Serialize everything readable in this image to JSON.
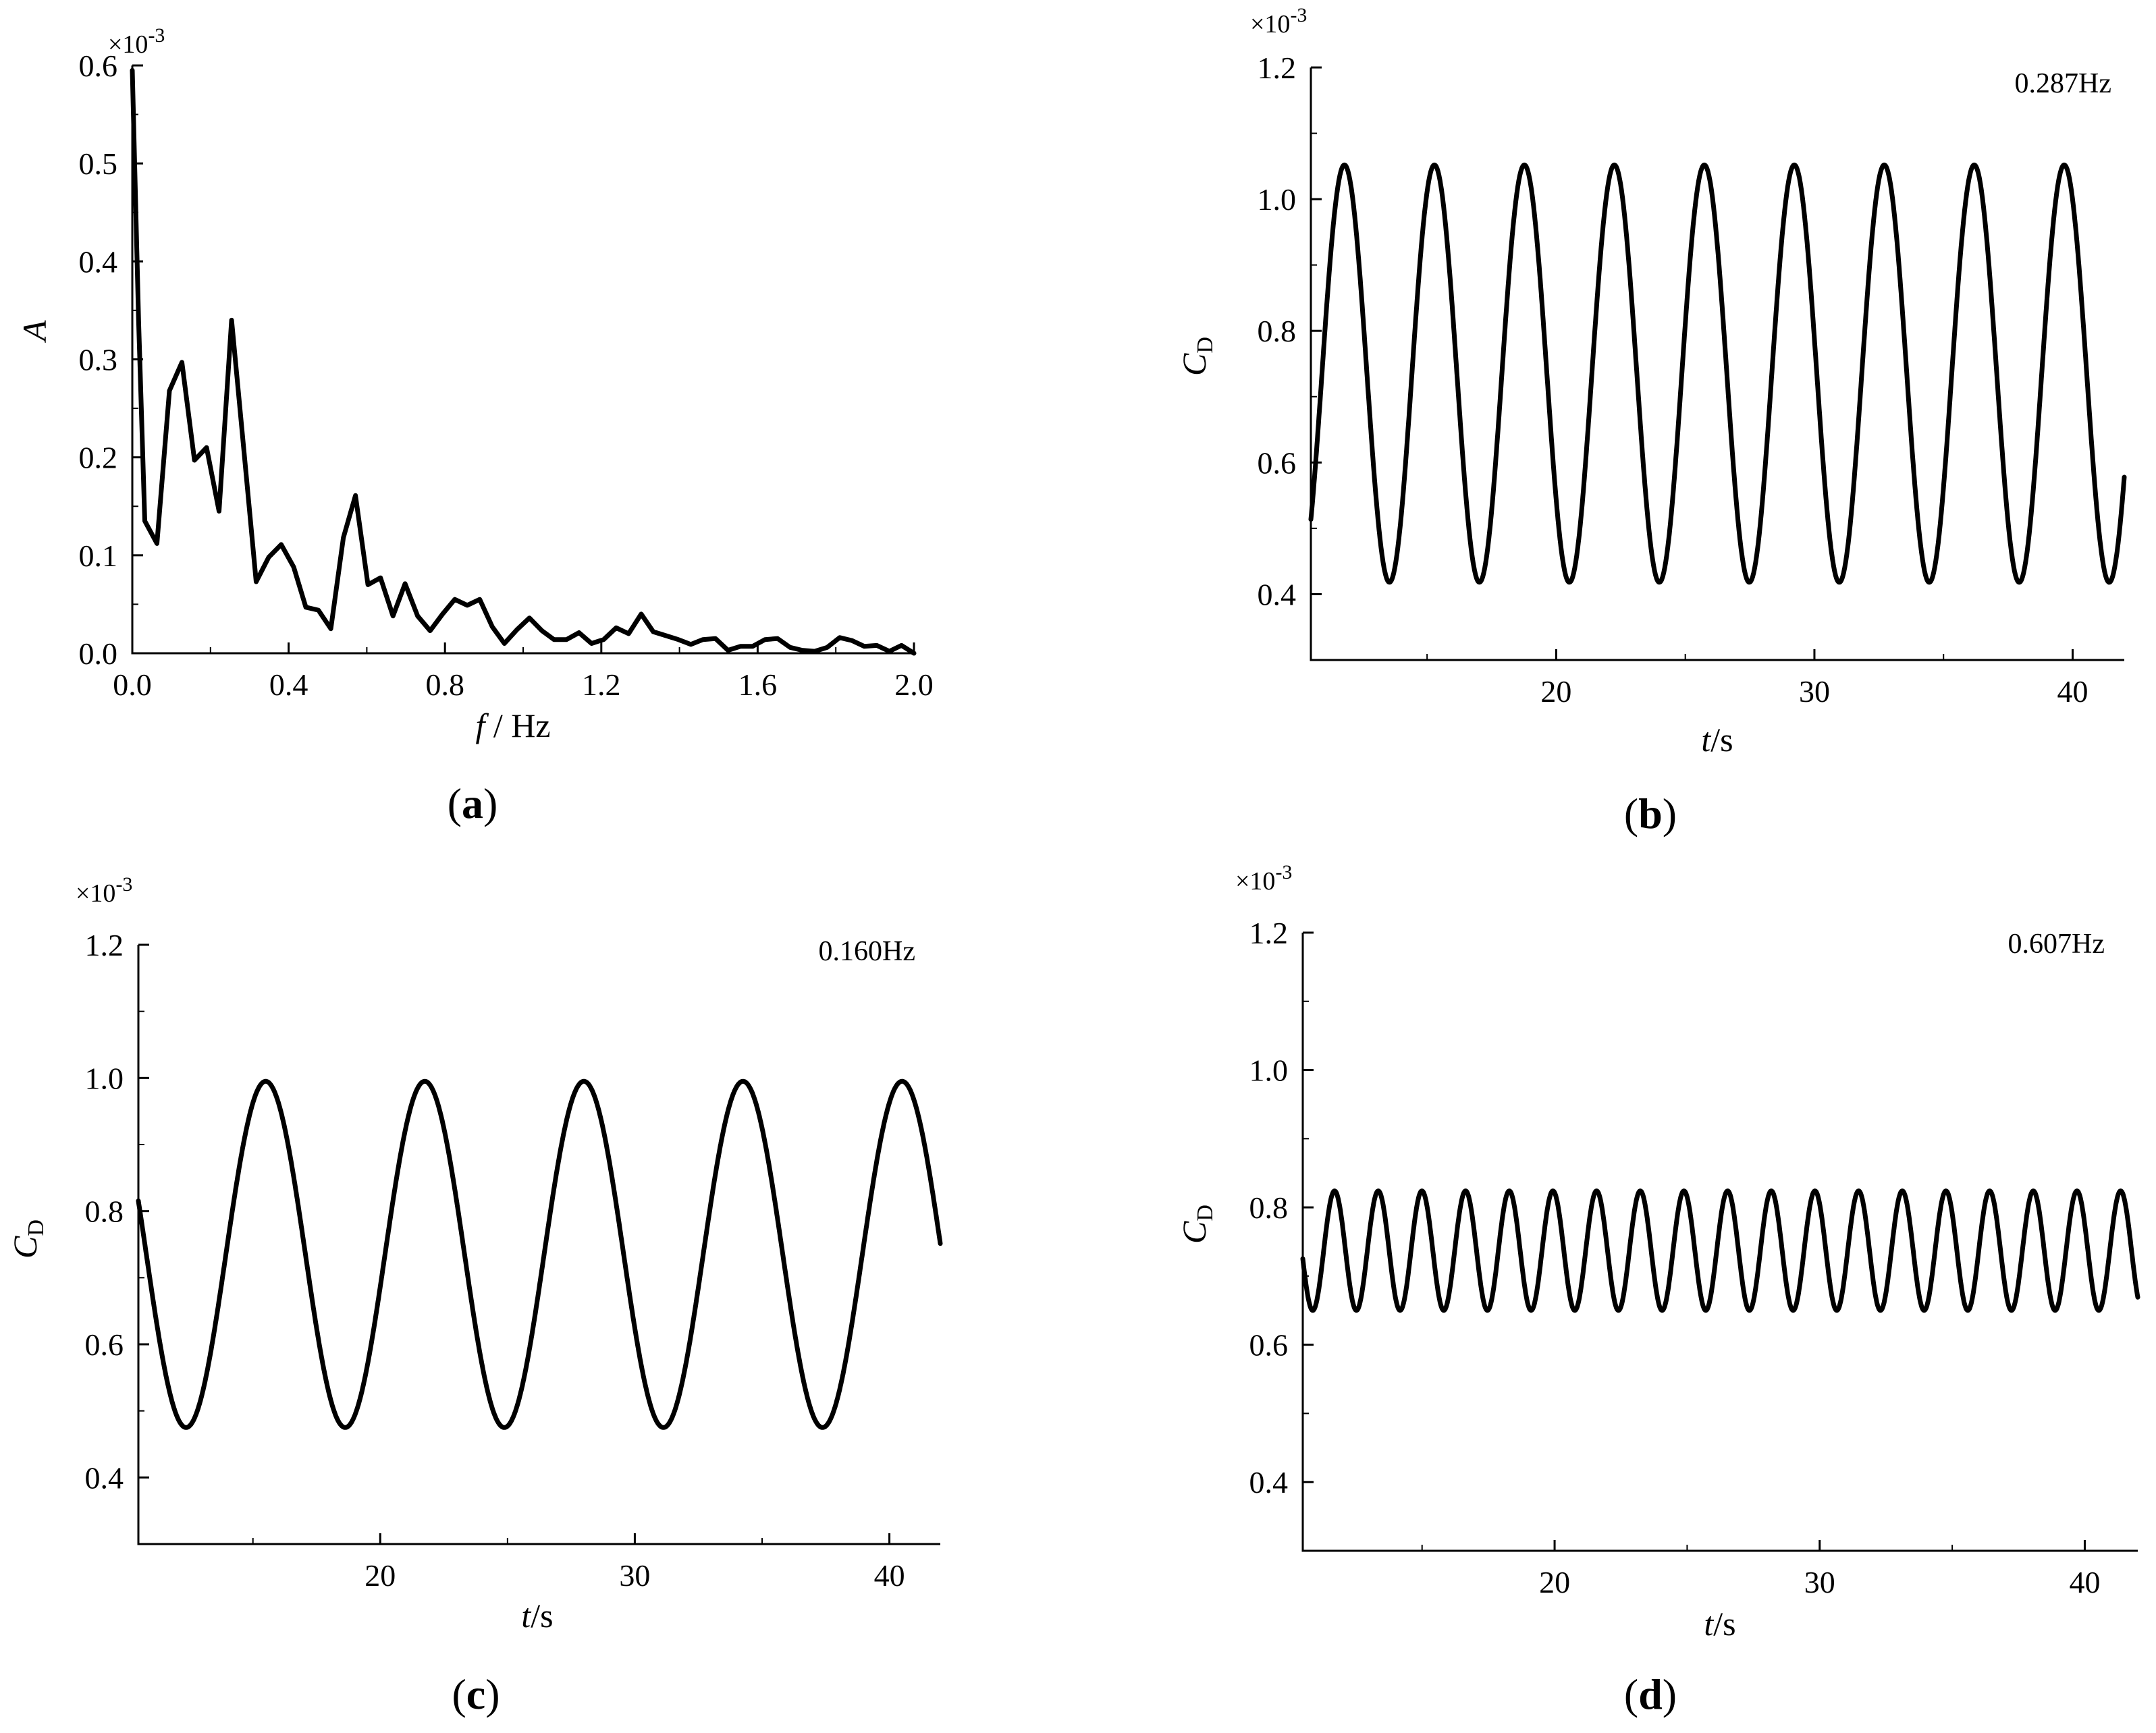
{
  "chart_data": [
    {
      "id": "a",
      "type": "line",
      "panel_label": {
        "open": "(",
        "letter": "a",
        "close": ")"
      },
      "annotation": "",
      "multiplier": "×10",
      "multiplier_exp": "-3",
      "y_label": {
        "main": "A",
        "sub": ""
      },
      "x_label": {
        "var": "f",
        "rest": " / Hz"
      },
      "xlim": [
        0,
        2.0
      ],
      "ylim": [
        0,
        0.6
      ],
      "xticks": [
        0.0,
        0.4,
        0.8,
        1.2,
        1.6,
        2.0
      ],
      "xtick_labels": [
        "0.0",
        "0.4",
        "0.8",
        "1.2",
        "1.6",
        "2.0"
      ],
      "yticks": [
        0.0,
        0.1,
        0.2,
        0.3,
        0.4,
        0.5,
        0.6
      ],
      "ytick_labels": [
        "0.0",
        "0.1",
        "0.2",
        "0.3",
        "0.4",
        "0.5",
        "0.6"
      ],
      "series": [
        {
          "x": [
            0.0,
            0.016,
            0.032,
            0.063,
            0.095,
            0.127,
            0.159,
            0.19,
            0.222,
            0.254,
            0.286,
            0.317,
            0.349,
            0.381,
            0.413,
            0.444,
            0.476,
            0.508,
            0.54,
            0.571,
            0.603,
            0.635,
            0.667,
            0.698,
            0.73,
            0.762,
            0.794,
            0.825,
            0.857,
            0.889,
            0.921,
            0.952,
            0.984,
            1.016,
            1.048,
            1.079,
            1.111,
            1.143,
            1.175,
            1.206,
            1.238,
            1.27,
            1.302,
            1.333,
            1.365,
            1.397,
            1.429,
            1.46,
            1.492,
            1.524,
            1.556,
            1.587,
            1.619,
            1.651,
            1.683,
            1.714,
            1.746,
            1.778,
            1.81,
            1.841,
            1.873,
            1.905,
            1.937,
            1.968,
            2.0
          ],
          "y": [
            0.595,
            0.34,
            0.135,
            0.112,
            0.268,
            0.297,
            0.197,
            0.21,
            0.145,
            0.34,
            0.205,
            0.073,
            0.098,
            0.111,
            0.088,
            0.047,
            0.044,
            0.025,
            0.118,
            0.161,
            0.07,
            0.077,
            0.038,
            0.071,
            0.038,
            0.023,
            0.04,
            0.055,
            0.049,
            0.055,
            0.027,
            0.01,
            0.024,
            0.036,
            0.023,
            0.014,
            0.014,
            0.021,
            0.01,
            0.014,
            0.026,
            0.02,
            0.04,
            0.022,
            0.018,
            0.014,
            0.009,
            0.014,
            0.015,
            0.003,
            0.007,
            0.007,
            0.014,
            0.015,
            0.006,
            0.003,
            0.002,
            0.006,
            0.016,
            0.013,
            0.007,
            0.008,
            0.002,
            0.008,
            0.0
          ]
        }
      ]
    },
    {
      "id": "b",
      "type": "line",
      "panel_label": {
        "open": "(",
        "letter": "b",
        "close": ")"
      },
      "annotation": "0.287Hz",
      "multiplier": "×10",
      "multiplier_exp": "-3",
      "y_label": {
        "main": "C",
        "sub": "D"
      },
      "x_label": {
        "var": "t",
        "rest": "/s"
      },
      "xlim": [
        10.5,
        42
      ],
      "ylim": [
        0.3,
        1.2
      ],
      "xticks": [
        20,
        30,
        40
      ],
      "xtick_labels": [
        "20",
        "30",
        "40"
      ],
      "yticks": [
        0.4,
        0.6,
        0.8,
        1.0,
        1.2
      ],
      "ytick_labels": [
        "0.4",
        "0.6",
        "0.8",
        "1.0",
        "1.2"
      ],
      "series": [
        {
          "function": "sine",
          "t_start": 10.5,
          "t_end": 42,
          "mean": 0.735,
          "amplitude": 0.317,
          "frequency": 0.287,
          "first_peak_t": 11.8
        }
      ]
    },
    {
      "id": "c",
      "type": "line",
      "panel_label": {
        "open": "(",
        "letter": "c",
        "close": ")"
      },
      "annotation": "0.160Hz",
      "multiplier": "×10",
      "multiplier_exp": "-3",
      "y_label": {
        "main": "C",
        "sub": "D"
      },
      "x_label": {
        "var": "t",
        "rest": "/s"
      },
      "xlim": [
        10.5,
        42
      ],
      "ylim": [
        0.3,
        1.2
      ],
      "xticks": [
        20,
        30,
        40
      ],
      "xtick_labels": [
        "20",
        "30",
        "40"
      ],
      "yticks": [
        0.4,
        0.6,
        0.8,
        1.0,
        1.2
      ],
      "ytick_labels": [
        "0.4",
        "0.6",
        "0.8",
        "1.0",
        "1.2"
      ],
      "series": [
        {
          "function": "sine",
          "t_start": 10.5,
          "t_end": 42,
          "mean": 0.735,
          "amplitude": 0.26,
          "frequency": 0.16,
          "first_peak_t": 15.5
        }
      ]
    },
    {
      "id": "d",
      "type": "line",
      "panel_label": {
        "open": "(",
        "letter": "d",
        "close": ")"
      },
      "annotation": "0.607Hz",
      "multiplier": "×10",
      "multiplier_exp": "-3",
      "y_label": {
        "main": "C",
        "sub": "D"
      },
      "x_label": {
        "var": "t",
        "rest": "/s"
      },
      "xlim": [
        10.5,
        42
      ],
      "ylim": [
        0.3,
        1.2
      ],
      "xticks": [
        20,
        30,
        40
      ],
      "xtick_labels": [
        "20",
        "30",
        "40"
      ],
      "yticks": [
        0.4,
        0.6,
        0.8,
        1.0,
        1.2
      ],
      "ytick_labels": [
        "0.4",
        "0.6",
        "0.8",
        "1.0",
        "1.2"
      ],
      "series": [
        {
          "function": "sine",
          "t_start": 10.5,
          "t_end": 42,
          "mean": 0.737,
          "amplitude": 0.087,
          "frequency": 0.607,
          "first_peak_t": 11.7
        }
      ]
    }
  ]
}
